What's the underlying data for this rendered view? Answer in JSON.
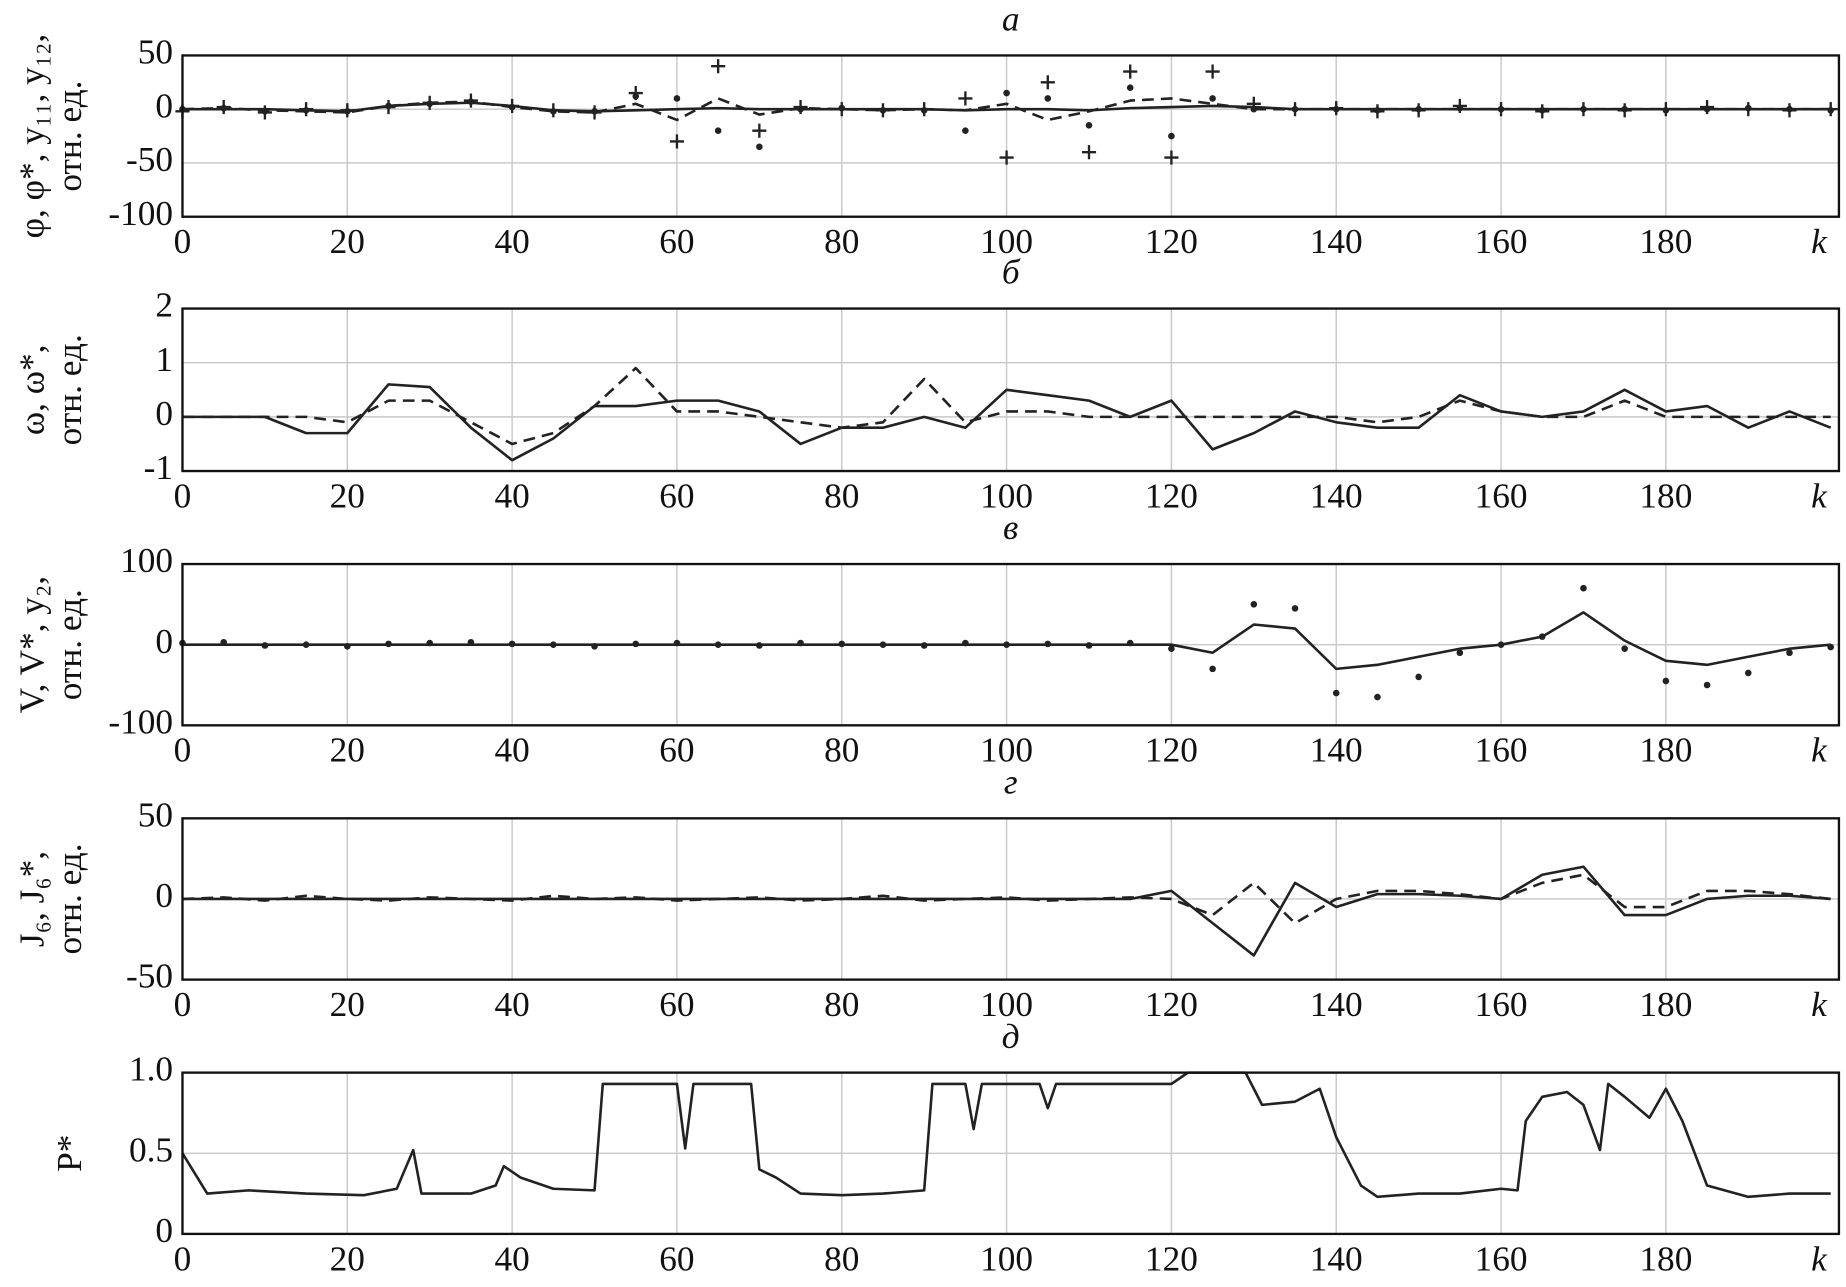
{
  "chart_data": [
    {
      "type": "line",
      "title": "а",
      "ylabel": [
        "φ, φ*, y₁₁, y₁₂,",
        "отн. ед."
      ],
      "xlabel": "k",
      "x": [
        0,
        5,
        10,
        15,
        20,
        25,
        30,
        35,
        40,
        45,
        50,
        55,
        60,
        65,
        70,
        75,
        80,
        85,
        90,
        95,
        100,
        105,
        110,
        115,
        120,
        125,
        130,
        135,
        140,
        145,
        150,
        155,
        160,
        165,
        170,
        175,
        180,
        185,
        190,
        195,
        200
      ],
      "series": [
        {
          "style": "solid",
          "color": "#222222",
          "values": [
            0,
            0,
            0,
            -1,
            -2,
            3,
            5,
            6,
            3,
            -1,
            -2,
            -1,
            0,
            1,
            0,
            0,
            0,
            0,
            0,
            -1,
            0,
            0,
            -1,
            1,
            2,
            3,
            2,
            0,
            0,
            0,
            0,
            0,
            0,
            0,
            0,
            0,
            0,
            0,
            0,
            0,
            0
          ]
        },
        {
          "style": "dashed",
          "color": "#222222",
          "values": [
            0,
            1,
            -1,
            -2,
            -3,
            3,
            6,
            7,
            2,
            -2,
            -3,
            5,
            -10,
            10,
            -5,
            1,
            0,
            -1,
            0,
            -1,
            5,
            -10,
            -2,
            8,
            10,
            5,
            0,
            0,
            0,
            0,
            0,
            0,
            0,
            0,
            0,
            0,
            0,
            0,
            0,
            0,
            0
          ]
        },
        {
          "style": "plus",
          "color": "#222222",
          "values": [
            -2,
            2,
            -3,
            0,
            -1,
            2,
            6,
            8,
            3,
            -1,
            -3,
            15,
            -30,
            40,
            -20,
            2,
            0,
            -1,
            0,
            10,
            -45,
            25,
            -40,
            35,
            -45,
            35,
            5,
            0,
            1,
            -2,
            -1,
            3,
            0,
            -2,
            0,
            -1,
            0,
            2,
            0,
            -1,
            0
          ]
        },
        {
          "style": "dot",
          "color": "#222222",
          "values": [
            0,
            1,
            -2,
            -1,
            -2,
            3,
            5,
            7,
            2,
            -2,
            -2,
            12,
            10,
            -20,
            -35,
            0,
            1,
            -1,
            -1,
            -20,
            15,
            10,
            -15,
            20,
            -25,
            10,
            0,
            0,
            0,
            -1,
            0,
            1,
            0,
            -1,
            0,
            0,
            -1,
            0,
            1,
            0,
            -1
          ]
        }
      ],
      "xlim": [
        0,
        201
      ],
      "ylim": [
        -100,
        50
      ],
      "xticks": [
        0,
        20,
        40,
        60,
        80,
        100,
        120,
        140,
        160,
        180
      ],
      "yticks": [
        -100,
        -50,
        0,
        50
      ],
      "grid": true
    },
    {
      "type": "line",
      "title": "б",
      "ylabel": [
        "ω, ω*,",
        "отн. ед."
      ],
      "xlabel": "k",
      "x": [
        0,
        5,
        10,
        15,
        20,
        25,
        30,
        35,
        40,
        45,
        50,
        55,
        60,
        65,
        70,
        75,
        80,
        85,
        90,
        95,
        100,
        105,
        110,
        115,
        120,
        125,
        130,
        135,
        140,
        145,
        150,
        155,
        160,
        165,
        170,
        175,
        180,
        185,
        190,
        195,
        200
      ],
      "series": [
        {
          "style": "solid",
          "color": "#222222",
          "values": [
            0,
            0,
            0,
            -0.3,
            -0.3,
            0.6,
            0.55,
            -0.2,
            -0.8,
            -0.4,
            0.2,
            0.2,
            0.3,
            0.3,
            0.1,
            -0.5,
            -0.2,
            -0.2,
            0,
            -0.2,
            0.5,
            0.4,
            0.3,
            0,
            0.3,
            -0.6,
            -0.3,
            0.1,
            -0.1,
            -0.2,
            -0.2,
            0.4,
            0.1,
            0,
            0.1,
            0.5,
            0.1,
            0.2,
            -0.2,
            0.1,
            -0.2
          ]
        },
        {
          "style": "dashed",
          "color": "#222222",
          "values": [
            0,
            0,
            0,
            0,
            -0.1,
            0.3,
            0.3,
            -0.1,
            -0.5,
            -0.3,
            0.2,
            0.9,
            0.1,
            0.1,
            0,
            -0.1,
            -0.2,
            -0.1,
            0.7,
            -0.1,
            0.1,
            0.1,
            0,
            0,
            0,
            0,
            0,
            0,
            0,
            -0.1,
            0,
            0.3,
            0.1,
            0,
            0,
            0.3,
            0,
            0,
            0,
            0,
            0
          ]
        }
      ],
      "xlim": [
        0,
        201
      ],
      "ylim": [
        -1,
        2
      ],
      "xticks": [
        0,
        20,
        40,
        60,
        80,
        100,
        120,
        140,
        160,
        180
      ],
      "yticks": [
        -1,
        0,
        1,
        2
      ],
      "grid": true
    },
    {
      "type": "line",
      "title": "в",
      "ylabel": [
        "V, V*, y₂,",
        "отн. ед."
      ],
      "xlabel": "k",
      "x": [
        0,
        5,
        10,
        15,
        20,
        25,
        30,
        35,
        40,
        45,
        50,
        55,
        60,
        65,
        70,
        75,
        80,
        85,
        90,
        95,
        100,
        105,
        110,
        115,
        120,
        125,
        130,
        135,
        140,
        145,
        150,
        155,
        160,
        165,
        170,
        175,
        180,
        185,
        190,
        195,
        200
      ],
      "series": [
        {
          "style": "solid",
          "color": "#222222",
          "values": [
            0,
            0,
            0,
            0,
            0,
            0,
            0,
            0,
            0,
            0,
            0,
            0,
            0,
            0,
            0,
            0,
            0,
            0,
            0,
            0,
            0,
            0,
            0,
            0,
            0,
            -10,
            25,
            20,
            -30,
            -25,
            -15,
            -5,
            0,
            10,
            40,
            5,
            -20,
            -25,
            -15,
            -5,
            0
          ]
        },
        {
          "style": "dot",
          "color": "#222222",
          "values": [
            2,
            3,
            -1,
            0,
            -2,
            1,
            2,
            3,
            1,
            0,
            -2,
            1,
            2,
            0,
            -1,
            2,
            1,
            0,
            -1,
            2,
            0,
            1,
            -1,
            2,
            -5,
            -30,
            50,
            45,
            -60,
            -65,
            -40,
            -10,
            0,
            10,
            70,
            -5,
            -45,
            -50,
            -35,
            -10,
            -3
          ]
        }
      ],
      "xlim": [
        0,
        201
      ],
      "ylim": [
        -100,
        100
      ],
      "xticks": [
        0,
        20,
        40,
        60,
        80,
        100,
        120,
        140,
        160,
        180
      ],
      "yticks": [
        -100,
        0,
        100
      ],
      "grid": true
    },
    {
      "type": "line",
      "title": "г",
      "ylabel": [
        "J₆, J₆*,",
        "отн. ед."
      ],
      "xlabel": "k",
      "x": [
        0,
        5,
        10,
        15,
        20,
        25,
        30,
        35,
        40,
        45,
        50,
        55,
        60,
        65,
        70,
        75,
        80,
        85,
        90,
        95,
        100,
        105,
        110,
        115,
        120,
        125,
        130,
        135,
        140,
        145,
        150,
        155,
        160,
        165,
        170,
        175,
        180,
        185,
        190,
        195,
        200
      ],
      "series": [
        {
          "style": "solid",
          "color": "#222222",
          "values": [
            0,
            0,
            0,
            0,
            0,
            0,
            0,
            0,
            0,
            0,
            0,
            0,
            0,
            0,
            0,
            0,
            0,
            0,
            0,
            0,
            0,
            0,
            0,
            0,
            5,
            -15,
            -35,
            10,
            -5,
            3,
            3,
            2,
            0,
            15,
            20,
            -10,
            -10,
            0,
            2,
            2,
            0
          ]
        },
        {
          "style": "dashed",
          "color": "#222222",
          "values": [
            0,
            1,
            -1,
            2,
            0,
            -1,
            1,
            0,
            -1,
            2,
            0,
            1,
            -1,
            0,
            1,
            -1,
            0,
            2,
            -1,
            0,
            1,
            -1,
            0,
            1,
            0,
            -10,
            10,
            -15,
            0,
            5,
            5,
            3,
            0,
            10,
            15,
            -5,
            -5,
            5,
            5,
            3,
            0
          ]
        }
      ],
      "xlim": [
        0,
        201
      ],
      "ylim": [
        -50,
        50
      ],
      "xticks": [
        0,
        20,
        40,
        60,
        80,
        100,
        120,
        140,
        160,
        180
      ],
      "yticks": [
        -50,
        0,
        50
      ],
      "grid": true
    },
    {
      "type": "line",
      "title": "д",
      "ylabel": [
        "P*"
      ],
      "xlabel": "k",
      "x": [
        0,
        3,
        8,
        15,
        22,
        26,
        28,
        29,
        35,
        38,
        39,
        41,
        45,
        50,
        51,
        60,
        61,
        62,
        69,
        70,
        72,
        75,
        80,
        85,
        90,
        91,
        95,
        96,
        97,
        100,
        104,
        105,
        106,
        107,
        110,
        120,
        122,
        129,
        131,
        135,
        138,
        140,
        143,
        145,
        150,
        155,
        160,
        162,
        163,
        165,
        168,
        170,
        172,
        173,
        175,
        178,
        180,
        182,
        185,
        190,
        195,
        200
      ],
      "series": [
        {
          "style": "solid",
          "color": "#222222",
          "values": [
            0.5,
            0.25,
            0.27,
            0.25,
            0.24,
            0.28,
            0.52,
            0.25,
            0.25,
            0.3,
            0.42,
            0.35,
            0.28,
            0.27,
            0.93,
            0.93,
            0.53,
            0.93,
            0.93,
            0.4,
            0.35,
            0.25,
            0.24,
            0.25,
            0.27,
            0.93,
            0.93,
            0.65,
            0.93,
            0.93,
            0.93,
            0.78,
            0.93,
            0.93,
            0.93,
            0.93,
            1.0,
            1.0,
            0.8,
            0.82,
            0.9,
            0.6,
            0.3,
            0.23,
            0.25,
            0.25,
            0.28,
            0.27,
            0.7,
            0.85,
            0.88,
            0.8,
            0.52,
            0.93,
            0.85,
            0.72,
            0.9,
            0.7,
            0.3,
            0.23,
            0.25,
            0.25
          ]
        }
      ],
      "xlim": [
        0,
        201
      ],
      "ylim": [
        0,
        1
      ],
      "xticks": [
        0,
        20,
        40,
        60,
        80,
        100,
        120,
        140,
        160,
        180
      ],
      "yticks": [
        0,
        0.5,
        {
          "value": 1,
          "label": "1.0"
        }
      ],
      "grid": true
    }
  ]
}
